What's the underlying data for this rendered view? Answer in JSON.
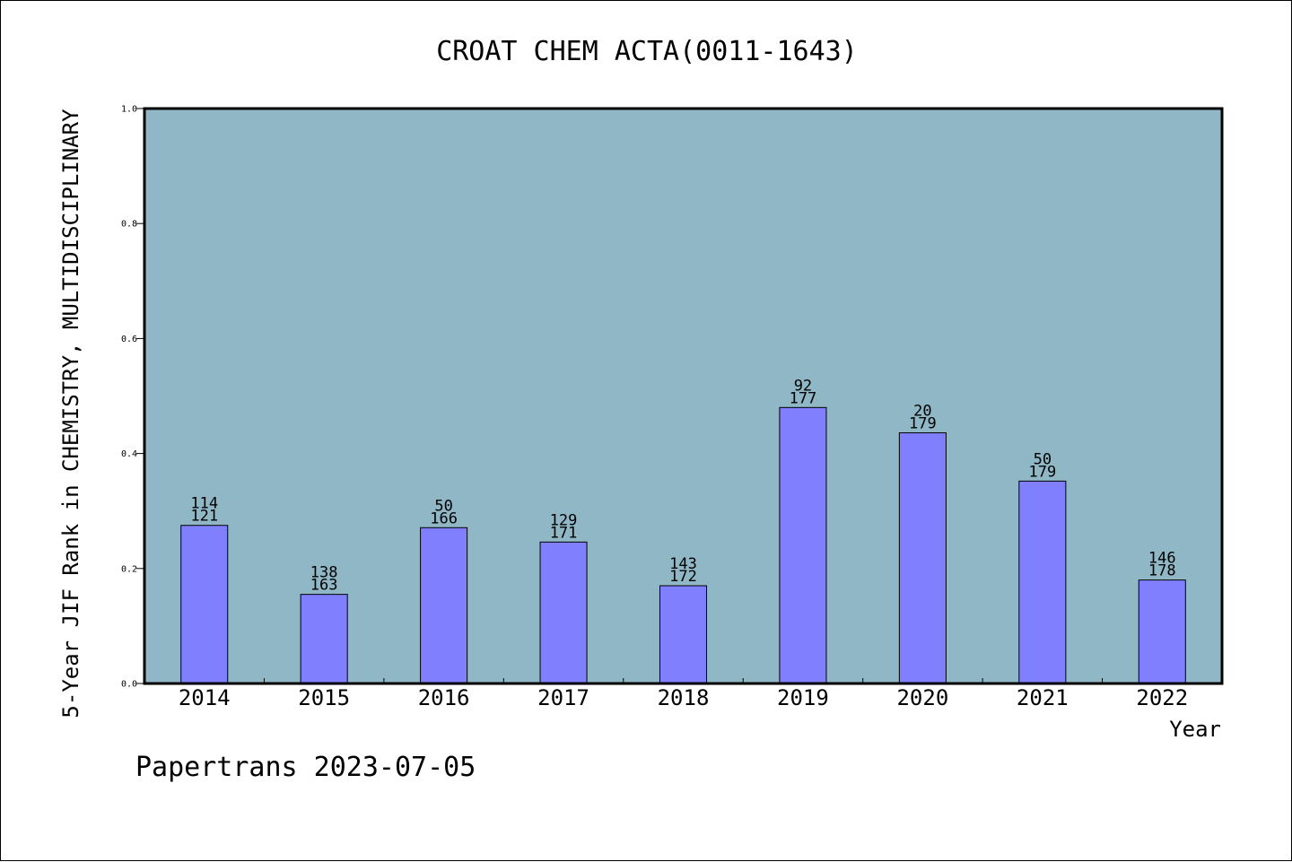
{
  "chart_data": {
    "type": "bar",
    "title": "CROAT CHEM ACTA(0011-1643)",
    "xlabel": "Year",
    "ylabel": "5-Year JIF Rank in CHEMISTRY, MULTIDISCIPLINARY",
    "categories": [
      "2014",
      "2015",
      "2016",
      "2017",
      "2018",
      "2019",
      "2020",
      "2021",
      "2022"
    ],
    "values": [
      0.275,
      0.155,
      0.271,
      0.246,
      0.17,
      0.48,
      0.436,
      0.352,
      0.18
    ],
    "bar_labels": [
      {
        "top": "114",
        "bottom": "121"
      },
      {
        "top": "138",
        "bottom": "163"
      },
      {
        "top": "50",
        "bottom": "166"
      },
      {
        "top": "129",
        "bottom": "171"
      },
      {
        "top": "143",
        "bottom": "172"
      },
      {
        "top": "92",
        "bottom": "177"
      },
      {
        "top": "20",
        "bottom": "179"
      },
      {
        "top": "50",
        "bottom": "179"
      },
      {
        "top": "146",
        "bottom": "178"
      }
    ],
    "ylim": [
      0.0,
      1.0
    ],
    "yticks": [
      "0.0",
      "0.2",
      "0.4",
      "0.6",
      "0.8",
      "1.0"
    ],
    "ytick_values": [
      0.0,
      0.2,
      0.4,
      0.6,
      0.8,
      1.0
    ],
    "grid": false,
    "colors": {
      "plot_background": "#8fb7c5",
      "bar_fill": "#8080ff",
      "bar_stroke": "#000000"
    }
  },
  "footer": {
    "text": "Papertrans 2023-07-05"
  }
}
